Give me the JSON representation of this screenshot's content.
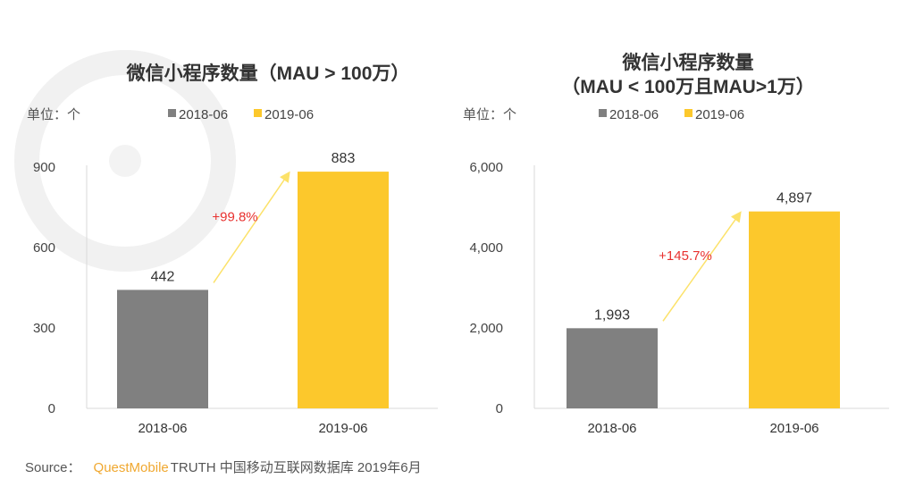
{
  "watermark": "QUESTMOBILE",
  "source": {
    "label": "Source：",
    "brand": "QuestMobile",
    "text": "TRUTH 中国移动互联网数据库 2019年6月"
  },
  "colors": {
    "2018-06": "#808080",
    "2019-06": "#fcc82c",
    "growth": "#e8312f",
    "arrow": "#fce26a"
  },
  "chart_data": [
    {
      "type": "bar",
      "title": "微信小程序数量（MAU > 100万）",
      "unit": "单位：个",
      "categories": [
        "2018-06",
        "2019-06"
      ],
      "values": [
        442,
        883
      ],
      "value_labels": [
        "442",
        "883"
      ],
      "legend": [
        "2018-06",
        "2019-06"
      ],
      "legend_placement": "top",
      "ylim": [
        0,
        900
      ],
      "yticks": [
        0,
        300,
        600,
        900
      ],
      "ytick_labels": [
        "0",
        "300",
        "600",
        "900"
      ],
      "annotation": "+99.8%",
      "grid": false
    },
    {
      "type": "bar",
      "title": "微信小程序数量",
      "subtitle": "（MAU < 100万且MAU>1万）",
      "unit": "单位：个",
      "categories": [
        "2018-06",
        "2019-06"
      ],
      "values": [
        1993,
        4897
      ],
      "value_labels": [
        "1,993",
        "4,897"
      ],
      "legend": [
        "2018-06",
        "2019-06"
      ],
      "legend_placement": "top",
      "ylim": [
        0,
        6000
      ],
      "yticks": [
        0,
        2000,
        4000,
        6000
      ],
      "ytick_labels": [
        "0",
        "2,000",
        "4,000",
        "6,000"
      ],
      "annotation": "+145.7%",
      "grid": false
    }
  ]
}
